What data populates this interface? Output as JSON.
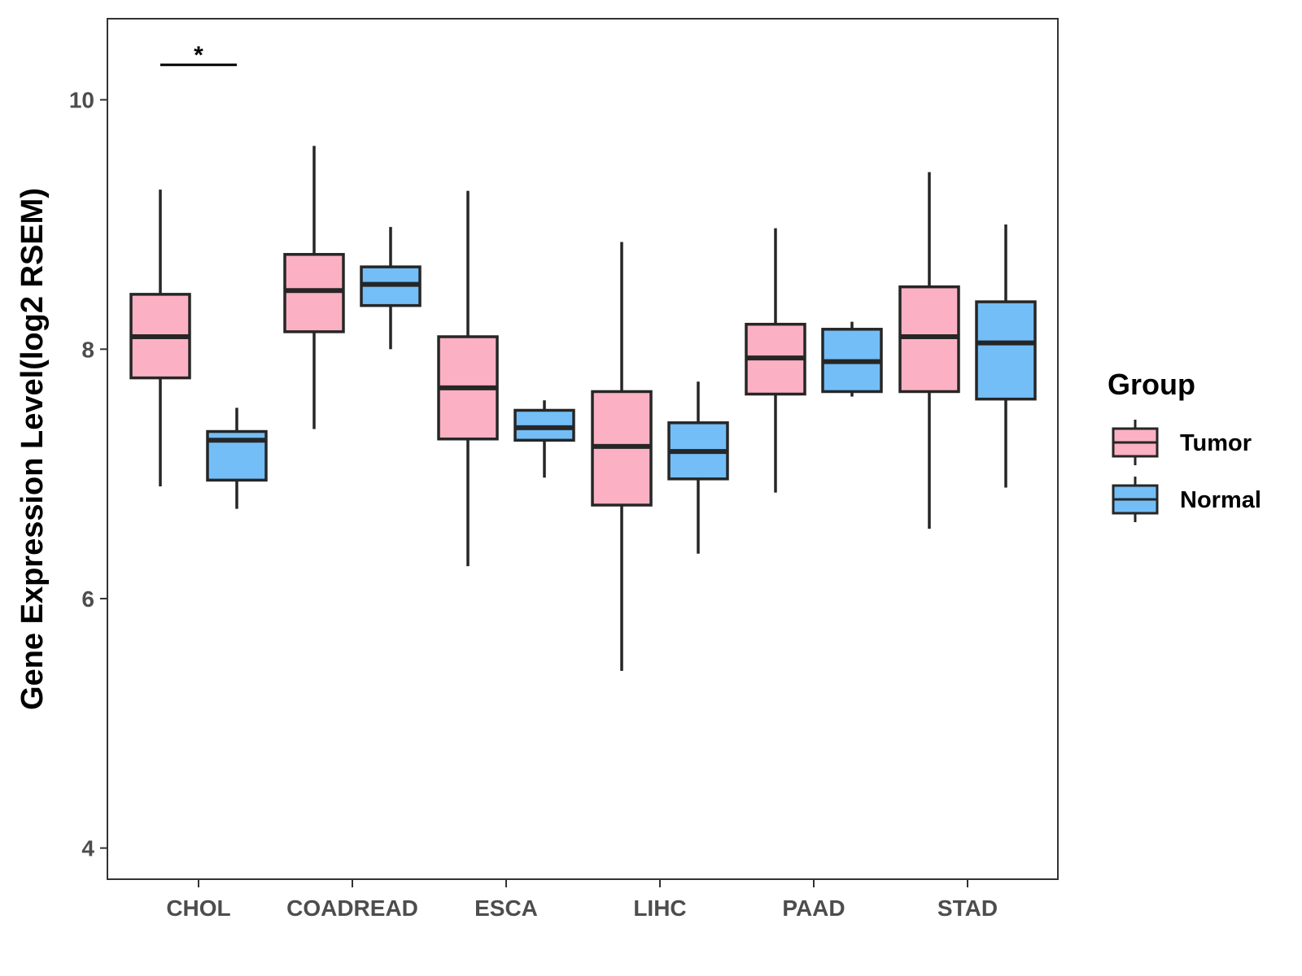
{
  "chart_data": {
    "type": "boxplot",
    "title": "",
    "xlabel": "",
    "ylabel": "Gene Expression Level(log2 RSEM)",
    "ylim": [
      3.75,
      10.65
    ],
    "yticks": [
      4,
      6,
      8,
      10
    ],
    "categories": [
      "CHOL",
      "COADREAD",
      "ESCA",
      "LIHC",
      "PAAD",
      "STAD"
    ],
    "legend": {
      "title": "Group",
      "position": "right",
      "entries": [
        "Tumor",
        "Normal"
      ]
    },
    "colors": {
      "Tumor": "#FBB1C3",
      "Normal": "#73BEF7",
      "outline": "#262626"
    },
    "series": [
      {
        "name": "Tumor",
        "boxes": [
          {
            "category": "CHOL",
            "whisker_low": 6.9,
            "q1": 7.77,
            "median": 8.1,
            "q3": 8.44,
            "whisker_high": 9.28
          },
          {
            "category": "COADREAD",
            "whisker_low": 7.36,
            "q1": 8.14,
            "median": 8.47,
            "q3": 8.76,
            "whisker_high": 9.63
          },
          {
            "category": "ESCA",
            "whisker_low": 6.26,
            "q1": 7.28,
            "median": 7.69,
            "q3": 8.1,
            "whisker_high": 9.27
          },
          {
            "category": "LIHC",
            "whisker_low": 5.42,
            "q1": 6.75,
            "median": 7.22,
            "q3": 7.66,
            "whisker_high": 8.86
          },
          {
            "category": "PAAD",
            "whisker_low": 6.85,
            "q1": 7.64,
            "median": 7.93,
            "q3": 8.2,
            "whisker_high": 8.97
          },
          {
            "category": "STAD",
            "whisker_low": 6.56,
            "q1": 7.66,
            "median": 8.1,
            "q3": 8.5,
            "whisker_high": 9.42
          }
        ]
      },
      {
        "name": "Normal",
        "boxes": [
          {
            "category": "CHOL",
            "whisker_low": 6.72,
            "q1": 6.95,
            "median": 7.27,
            "q3": 7.34,
            "whisker_high": 7.53
          },
          {
            "category": "COADREAD",
            "whisker_low": 8.0,
            "q1": 8.35,
            "median": 8.52,
            "q3": 8.66,
            "whisker_high": 8.98
          },
          {
            "category": "ESCA",
            "whisker_low": 6.97,
            "q1": 7.27,
            "median": 7.37,
            "q3": 7.51,
            "whisker_high": 7.59
          },
          {
            "category": "LIHC",
            "whisker_low": 6.36,
            "q1": 6.96,
            "median": 7.18,
            "q3": 7.41,
            "whisker_high": 7.74
          },
          {
            "category": "PAAD",
            "whisker_low": 7.62,
            "q1": 7.66,
            "median": 7.9,
            "q3": 8.16,
            "whisker_high": 8.22
          },
          {
            "category": "STAD",
            "whisker_low": 6.89,
            "q1": 7.6,
            "median": 8.05,
            "q3": 8.38,
            "whisker_high": 9.0
          }
        ]
      }
    ],
    "annotations": [
      {
        "category": "CHOL",
        "label": "*",
        "y": 10.28
      }
    ]
  }
}
